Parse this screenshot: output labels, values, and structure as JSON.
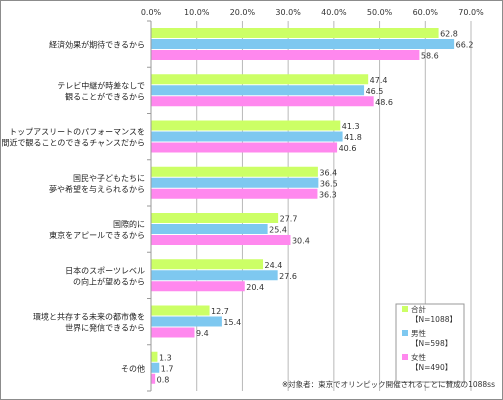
{
  "chart_data": {
    "type": "bar",
    "orientation": "horizontal",
    "categories": [
      [
        "経済効果が期待できるから"
      ],
      [
        "テレビ中継が時差なしで",
        "観ることができるから"
      ],
      [
        "トップアスリートのパフォーマンスを",
        "間近で観ることのできるチャンスだから"
      ],
      [
        "国民や子どもたちに",
        "夢や希望を与えられるから"
      ],
      [
        "国際的に",
        "東京をアピールできるから"
      ],
      [
        "日本のスポーツレベル",
        "の向上が望めるから"
      ],
      [
        "環境と共存する未来の都市像を",
        "世界に発信できるから"
      ],
      [
        "その他"
      ]
    ],
    "series": [
      {
        "name": [
          "合計",
          "【N=1088】"
        ],
        "color": "#ccff66",
        "values": [
          62.8,
          47.4,
          41.3,
          36.4,
          27.7,
          24.4,
          12.7,
          1.3
        ]
      },
      {
        "name": [
          "男性",
          "【N=598】"
        ],
        "color": "#7ec8f0",
        "values": [
          66.2,
          46.5,
          41.8,
          36.5,
          25.4,
          27.6,
          15.4,
          1.7
        ]
      },
      {
        "name": [
          "女性",
          "【N=490】"
        ],
        "color": "#ff88ee",
        "values": [
          58.6,
          48.6,
          40.6,
          36.3,
          30.4,
          20.4,
          9.4,
          0.8
        ]
      }
    ],
    "xlim": [
      0,
      70
    ],
    "ticks": [
      0,
      10,
      20,
      30,
      40,
      50,
      60,
      70
    ],
    "tick_labels": [
      "0.0%",
      "10.0%",
      "20.0%",
      "30.0%",
      "40.0%",
      "50.0%",
      "60.0%",
      "70.0%"
    ],
    "grid": true,
    "legend_position": "bottom-right",
    "note": "※対象者：東京でオリンピック開催されることに賛成の1088ss"
  }
}
